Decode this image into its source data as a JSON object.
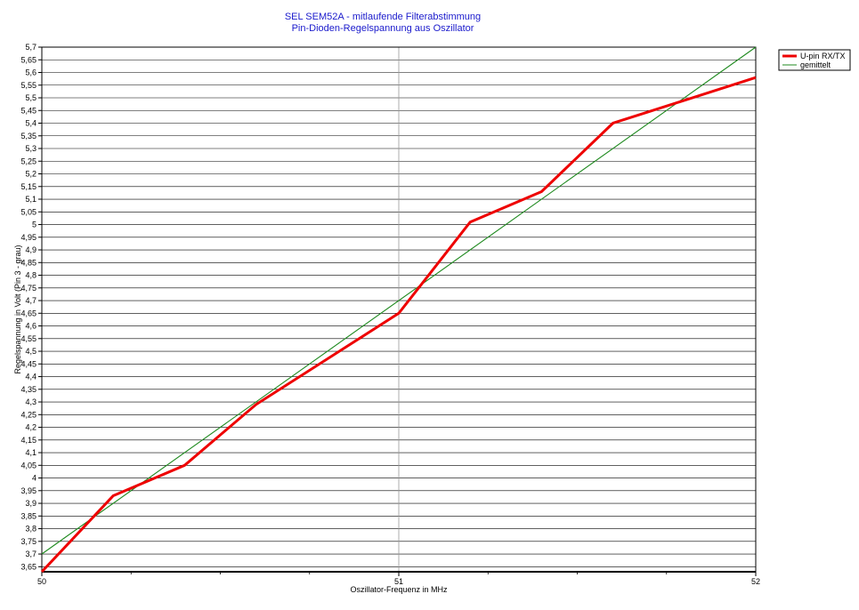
{
  "chart_data": {
    "type": "line",
    "title": "SEL SEM52A - mitlaufende Filterabstimmung",
    "subtitle": "Pin-Dioden-Regelspannung aus Oszillator",
    "xlabel": "Oszillator-Frequenz in MHz",
    "ylabel": "Regelspannung in Volt   (Pin 3 - grau)",
    "xlim": [
      50,
      52
    ],
    "ylim": [
      3.63,
      5.7
    ],
    "x_ticks": [
      "50",
      "51",
      "52"
    ],
    "y_ticks": [
      "3,65",
      "3,7",
      "3,75",
      "3,8",
      "3,85",
      "3,9",
      "3,95",
      "4",
      "4,05",
      "4,1",
      "4,15",
      "4,2",
      "4,25",
      "4,3",
      "4,35",
      "4,4",
      "4,45",
      "4,5",
      "4,55",
      "4,6",
      "4,65",
      "4,7",
      "4,75",
      "4,8",
      "4,85",
      "4,9",
      "4,95",
      "5",
      "5,05",
      "5,1",
      "5,15",
      "5,2",
      "5,25",
      "5,3",
      "5,35",
      "5,4",
      "5,45",
      "5,5",
      "5,55",
      "5,6",
      "5,65",
      "5,7"
    ],
    "grid": true,
    "legend_position": "top-right",
    "series": [
      {
        "name": "U-pin RX/TX",
        "color": "#ee0000",
        "x": [
          50,
          50.2,
          50.4,
          50.6,
          51,
          51.2,
          51.4,
          51.6,
          52
        ],
        "y": [
          3.63,
          3.93,
          4.05,
          4.29,
          4.65,
          5.01,
          5.13,
          5.4,
          5.58
        ]
      },
      {
        "name": "gemittelt",
        "color": "#1f8a1f",
        "x": [
          50,
          52
        ],
        "y": [
          3.7,
          5.7
        ]
      }
    ]
  }
}
